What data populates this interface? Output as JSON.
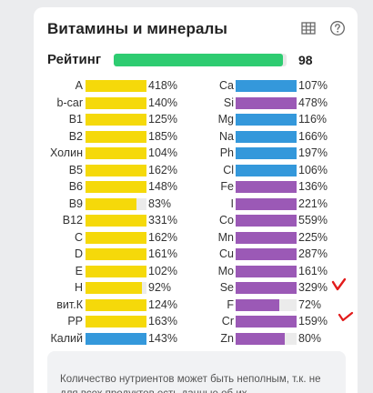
{
  "card": {
    "title": "Витамины и минералы",
    "table_icon": "table-grid-icon",
    "help_icon": "question-circle-icon"
  },
  "rating": {
    "label": "Рейтинг",
    "value": "98",
    "fill_percent": 98,
    "color": "#2ecc71"
  },
  "colors": {
    "yellow": "#f5d90a",
    "blue": "#3498db",
    "purple": "#9b59b6",
    "track": "#ebebeb",
    "annotation_red": "#e21b1b"
  },
  "vitamins": [
    {
      "name": "A",
      "value": "418%",
      "pct": 418,
      "color": "yellow"
    },
    {
      "name": "b-car",
      "value": "140%",
      "pct": 140,
      "color": "yellow"
    },
    {
      "name": "B1",
      "value": "125%",
      "pct": 125,
      "color": "yellow"
    },
    {
      "name": "B2",
      "value": "185%",
      "pct": 185,
      "color": "yellow"
    },
    {
      "name": "Холин",
      "value": "104%",
      "pct": 104,
      "color": "yellow"
    },
    {
      "name": "B5",
      "value": "162%",
      "pct": 162,
      "color": "yellow"
    },
    {
      "name": "B6",
      "value": "148%",
      "pct": 148,
      "color": "yellow"
    },
    {
      "name": "B9",
      "value": "83%",
      "pct": 83,
      "color": "yellow"
    },
    {
      "name": "B12",
      "value": "331%",
      "pct": 331,
      "color": "yellow"
    },
    {
      "name": "C",
      "value": "162%",
      "pct": 162,
      "color": "yellow"
    },
    {
      "name": "D",
      "value": "161%",
      "pct": 161,
      "color": "yellow"
    },
    {
      "name": "E",
      "value": "102%",
      "pct": 102,
      "color": "yellow"
    },
    {
      "name": "H",
      "value": "92%",
      "pct": 92,
      "color": "yellow"
    },
    {
      "name": "вит.К",
      "value": "124%",
      "pct": 124,
      "color": "yellow"
    },
    {
      "name": "PP",
      "value": "163%",
      "pct": 163,
      "color": "yellow"
    },
    {
      "name": "Калий",
      "value": "143%",
      "pct": 143,
      "color": "blue"
    }
  ],
  "minerals": [
    {
      "name": "Ca",
      "value": "107%",
      "pct": 107,
      "color": "blue"
    },
    {
      "name": "Si",
      "value": "478%",
      "pct": 478,
      "color": "purple"
    },
    {
      "name": "Mg",
      "value": "116%",
      "pct": 116,
      "color": "blue"
    },
    {
      "name": "Na",
      "value": "166%",
      "pct": 166,
      "color": "blue"
    },
    {
      "name": "Ph",
      "value": "197%",
      "pct": 197,
      "color": "blue"
    },
    {
      "name": "Cl",
      "value": "106%",
      "pct": 106,
      "color": "blue"
    },
    {
      "name": "Fe",
      "value": "136%",
      "pct": 136,
      "color": "purple"
    },
    {
      "name": "I",
      "value": "221%",
      "pct": 221,
      "color": "purple"
    },
    {
      "name": "Co",
      "value": "559%",
      "pct": 559,
      "color": "purple"
    },
    {
      "name": "Mn",
      "value": "225%",
      "pct": 225,
      "color": "purple"
    },
    {
      "name": "Cu",
      "value": "287%",
      "pct": 287,
      "color": "purple"
    },
    {
      "name": "Mo",
      "value": "161%",
      "pct": 161,
      "color": "purple"
    },
    {
      "name": "Se",
      "value": "329%",
      "pct": 329,
      "color": "purple"
    },
    {
      "name": "F",
      "value": "72%",
      "pct": 72,
      "color": "purple"
    },
    {
      "name": "Cr",
      "value": "159%",
      "pct": 159,
      "color": "purple"
    },
    {
      "name": "Zn",
      "value": "80%",
      "pct": 80,
      "color": "purple"
    }
  ],
  "note": {
    "text": "Количество нутриентов может быть неполным, т.к. не для всех продуктов есть данные об их"
  },
  "annotations": [
    {
      "name": "checkmark-se",
      "color": "annotation_red"
    },
    {
      "name": "checkmark-cr",
      "color": "annotation_red"
    }
  ]
}
